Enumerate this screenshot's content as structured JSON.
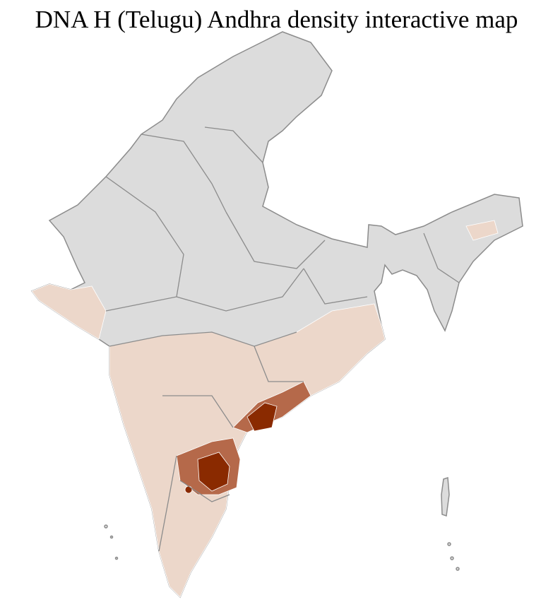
{
  "title": "DNA H (Telugu) Andhra density interactive map",
  "colors": {
    "no_data": "#dcdcdc",
    "low": "#ecd7ca",
    "medium": "#b5694a",
    "high": "#8a2a00",
    "district_border": "#ffffff",
    "state_border": "#8c8c8c"
  },
  "density_levels": [
    "none",
    "low",
    "medium",
    "high"
  ]
}
